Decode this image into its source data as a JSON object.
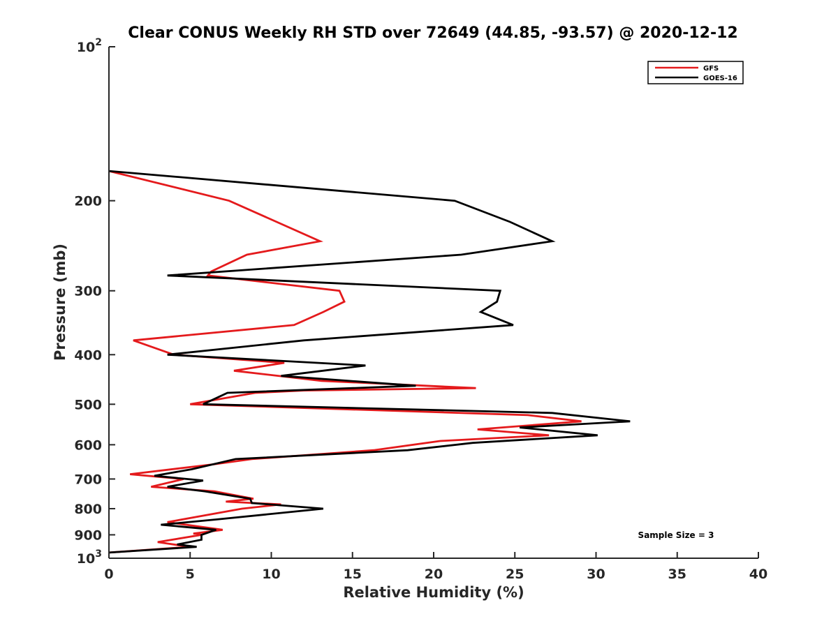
{
  "colors": {
    "gfs": "#e41a1c",
    "goes": "#000000",
    "axis": "#262626"
  },
  "chart_data": {
    "type": "line",
    "title": "Clear CONUS Weekly RH STD over 72649 (44.85, -93.57) @ 2020-12-12",
    "xlabel": "Relative Humidity (%)",
    "ylabel": "Pressure (mb)",
    "xlim": [
      0,
      40
    ],
    "ylim": [
      100,
      1000
    ],
    "yscale": "log",
    "yreversed": true,
    "grid": false,
    "legend_placement": "top-right",
    "xticks": [
      0,
      5,
      10,
      15,
      20,
      25,
      30,
      35,
      40
    ],
    "yticks": [
      {
        "value": 100,
        "base": "10",
        "exp": "2"
      },
      {
        "value": 200,
        "label": "200"
      },
      {
        "value": 300,
        "label": "300"
      },
      {
        "value": 400,
        "label": "400"
      },
      {
        "value": 500,
        "label": "500"
      },
      {
        "value": 600,
        "label": "600"
      },
      {
        "value": 700,
        "label": "700"
      },
      {
        "value": 800,
        "label": "800"
      },
      {
        "value": 900,
        "label": "900"
      },
      {
        "value": 1000,
        "base": "10",
        "exp": "3"
      }
    ],
    "series": [
      {
        "name": "GFS",
        "color": "#e41a1c",
        "points": [
          [
            0,
            175
          ],
          [
            7.4,
            200
          ],
          [
            13.0,
            240
          ],
          [
            8.5,
            255
          ],
          [
            6.3,
            275
          ],
          [
            6.1,
            280
          ],
          [
            14.2,
            300
          ],
          [
            14.5,
            315
          ],
          [
            13.2,
            330
          ],
          [
            11.4,
            350
          ],
          [
            1.5,
            375
          ],
          [
            4.0,
            400
          ],
          [
            10.8,
            415
          ],
          [
            7.7,
            430
          ],
          [
            13.1,
            450
          ],
          [
            22.6,
            465
          ],
          [
            12.0,
            470
          ],
          [
            9.0,
            475
          ],
          [
            5.0,
            500
          ],
          [
            25.8,
            525
          ],
          [
            29.1,
            540
          ],
          [
            22.7,
            560
          ],
          [
            27.1,
            575
          ],
          [
            20.4,
            590
          ],
          [
            16.3,
            615
          ],
          [
            8.8,
            640
          ],
          [
            6.5,
            655
          ],
          [
            1.3,
            685
          ],
          [
            4.6,
            700
          ],
          [
            2.6,
            725
          ],
          [
            6.5,
            740
          ],
          [
            8.9,
            765
          ],
          [
            7.2,
            775
          ],
          [
            10.6,
            785
          ],
          [
            8.2,
            800
          ],
          [
            3.6,
            850
          ],
          [
            7.0,
            880
          ],
          [
            5.2,
            895
          ],
          [
            5.7,
            900
          ],
          [
            3.0,
            930
          ],
          [
            5.0,
            950
          ],
          [
            0,
            975
          ]
        ]
      },
      {
        "name": "GOES-16",
        "color": "#000000",
        "points": [
          [
            0,
            175
          ],
          [
            21.3,
            200
          ],
          [
            24.7,
            220
          ],
          [
            27.3,
            240
          ],
          [
            21.7,
            255
          ],
          [
            3.6,
            280
          ],
          [
            24.1,
            300
          ],
          [
            23.9,
            315
          ],
          [
            22.9,
            330
          ],
          [
            24.9,
            350
          ],
          [
            12.0,
            375
          ],
          [
            3.6,
            400
          ],
          [
            15.8,
            420
          ],
          [
            10.6,
            440
          ],
          [
            18.9,
            460
          ],
          [
            7.3,
            475
          ],
          [
            5.8,
            500
          ],
          [
            27.3,
            520
          ],
          [
            32.1,
            540
          ],
          [
            25.3,
            555
          ],
          [
            30.1,
            575
          ],
          [
            22.4,
            595
          ],
          [
            18.4,
            615
          ],
          [
            7.8,
            640
          ],
          [
            5.1,
            670
          ],
          [
            2.8,
            690
          ],
          [
            5.8,
            705
          ],
          [
            3.6,
            725
          ],
          [
            5.9,
            740
          ],
          [
            8.7,
            765
          ],
          [
            8.8,
            780
          ],
          [
            13.2,
            800
          ],
          [
            6.6,
            840
          ],
          [
            3.2,
            860
          ],
          [
            6.6,
            880
          ],
          [
            5.7,
            900
          ],
          [
            5.7,
            920
          ],
          [
            4.2,
            940
          ],
          [
            5.4,
            950
          ],
          [
            0,
            975
          ]
        ]
      }
    ],
    "annotation": "Sample Size = 3"
  }
}
